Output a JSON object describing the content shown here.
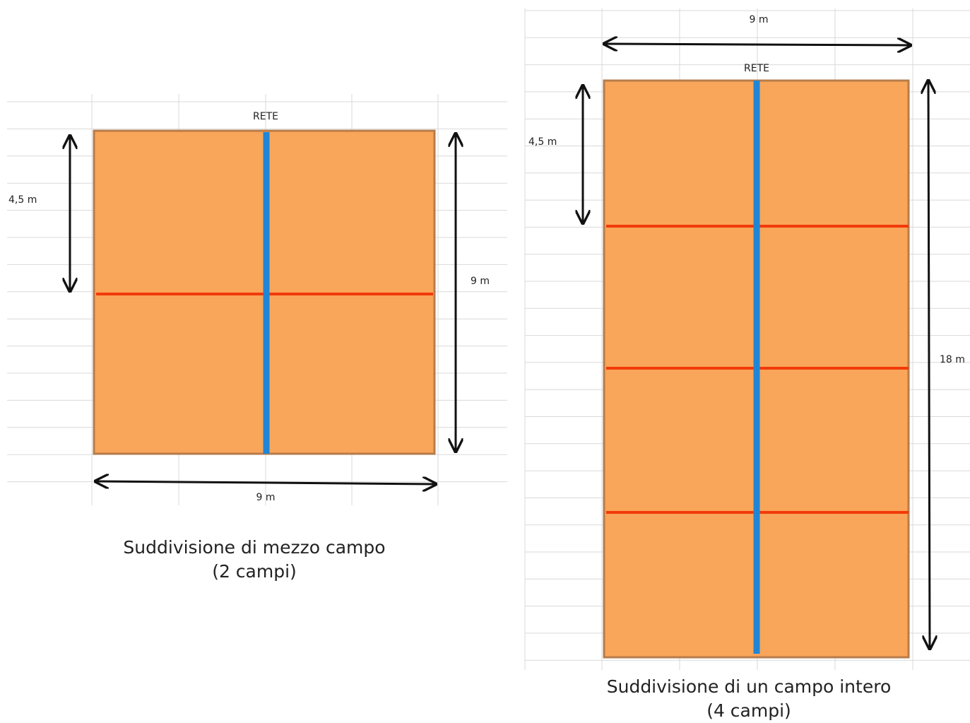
{
  "colors": {
    "court_fill": "#F9A55A",
    "court_border": "#B87C4A",
    "net_line": "#1F86D6",
    "division_line": "#F23A0A",
    "grid_line": "#D9D9D9",
    "arrow": "#111111"
  },
  "diagrams": [
    {
      "id": "half-court",
      "net_label": "RETE",
      "depth_label": "4,5 m",
      "side_label": "9 m",
      "width_label": "9 m",
      "caption_line1": "Suddivisione di mezzo campo",
      "caption_line2": "(2 campi)",
      "division_lines": 1
    },
    {
      "id": "full-court",
      "net_label": "RETE",
      "depth_label": "4,5 m",
      "side_label": "18 m",
      "width_label": "9 m",
      "caption_line1": "Suddivisione di un campo intero",
      "caption_line2": "(4 campi)",
      "division_lines": 3
    }
  ]
}
